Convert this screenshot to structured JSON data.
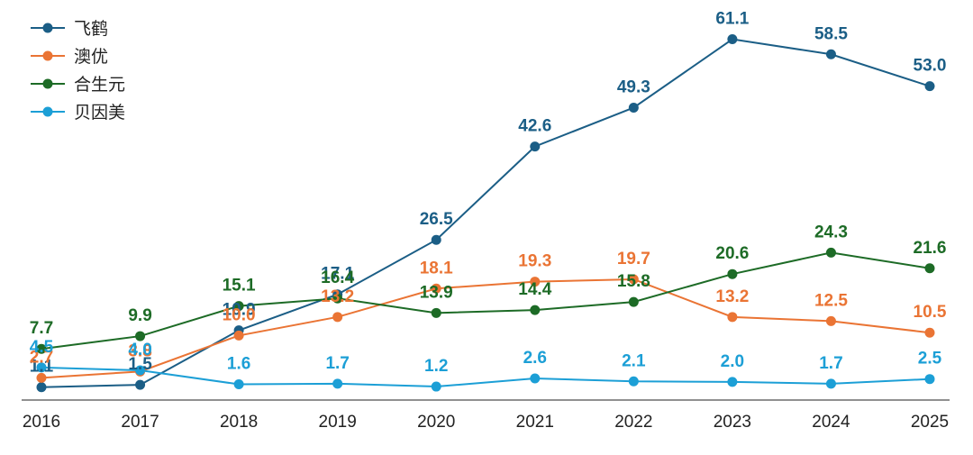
{
  "chart_data": {
    "type": "line",
    "x": [
      "2016",
      "2017",
      "2018",
      "2019",
      "2020",
      "2021",
      "2022",
      "2023",
      "2024",
      "2025"
    ],
    "series": [
      {
        "name": "飞鹤",
        "color": "#1b5e86",
        "values": [
          1.1,
          1.5,
          10.9,
          17.1,
          26.5,
          42.6,
          49.3,
          61.1,
          58.5,
          53.0
        ],
        "labels": [
          "1.1",
          "1.5",
          "10.9",
          "17.1",
          "26.5",
          "42.6",
          "49.3",
          "61.1",
          "58.5",
          "53.0"
        ]
      },
      {
        "name": "澳优",
        "color": "#ea7434",
        "values": [
          2.7,
          3.8,
          10.0,
          13.2,
          18.1,
          19.3,
          19.7,
          13.2,
          12.5,
          10.5
        ],
        "labels": [
          "2.7",
          "3.8",
          "10.0",
          "13.2",
          "18.1",
          "19.3",
          "19.7",
          "13.2",
          "12.5",
          "10.5"
        ]
      },
      {
        "name": "合生元",
        "color": "#1d6b26",
        "values": [
          7.7,
          9.9,
          15.1,
          16.4,
          13.9,
          14.4,
          15.8,
          20.6,
          24.3,
          21.6
        ],
        "labels": [
          "7.7",
          "9.9",
          "15.1",
          "16.4",
          "13.9",
          "14.4",
          "15.8",
          "20.6",
          "24.3",
          "21.6"
        ]
      },
      {
        "name": "贝因美",
        "color": "#1c9fd6",
        "values": [
          4.5,
          4.0,
          1.6,
          1.7,
          1.2,
          2.6,
          2.1,
          2.0,
          1.7,
          2.5
        ],
        "labels": [
          "4.5",
          "4.0",
          "1.6",
          "1.7",
          "1.2",
          "2.6",
          "2.1",
          "2.0",
          "1.7",
          "2.5"
        ]
      }
    ],
    "ylim": [
      -0.5,
      66
    ],
    "grid": false,
    "legend_position": "top-left"
  }
}
